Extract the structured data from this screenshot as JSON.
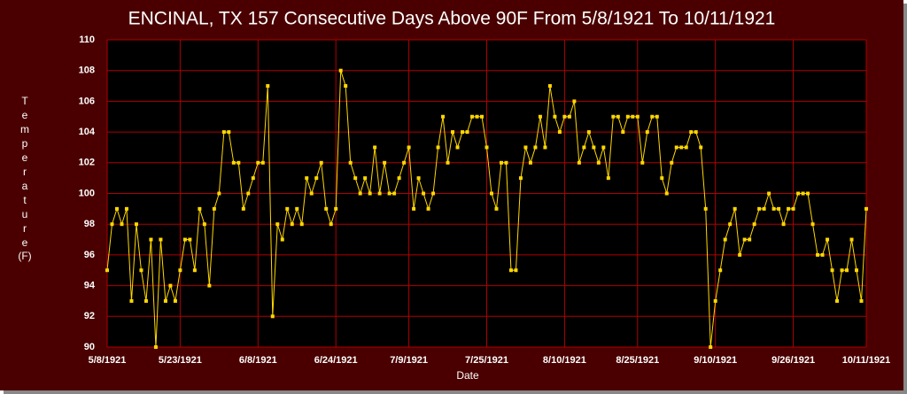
{
  "chart_data": {
    "type": "line",
    "title": "ENCINAL, TX  157 Consecutive Days Above 90F From 5/8/1921 To 10/11/1921",
    "xlabel": "Date",
    "ylabel": "Temperature",
    "yunit": "(F)",
    "categories": [
      "5/8/1921",
      null,
      null,
      null,
      null,
      null,
      null,
      null,
      null,
      null,
      null,
      null,
      null,
      null,
      null,
      "5/23/1921",
      null,
      null,
      null,
      null,
      null,
      null,
      null,
      null,
      null,
      null,
      null,
      null,
      null,
      null,
      null,
      "6/8/1921",
      null,
      null,
      null,
      null,
      null,
      null,
      null,
      null,
      null,
      null,
      null,
      null,
      null,
      null,
      null,
      "6/24/1921",
      null,
      null,
      null,
      null,
      null,
      null,
      null,
      null,
      null,
      null,
      null,
      null,
      null,
      null,
      "7/9/1921",
      null,
      null,
      null,
      null,
      null,
      null,
      null,
      null,
      null,
      null,
      null,
      null,
      null,
      null,
      null,
      "7/25/1921",
      null,
      null,
      null,
      null,
      null,
      null,
      null,
      null,
      null,
      null,
      null,
      null,
      null,
      null,
      null,
      "8/10/1921",
      null,
      null,
      null,
      null,
      null,
      null,
      null,
      null,
      null,
      null,
      null,
      null,
      null,
      null,
      "8/25/1921",
      null,
      null,
      null,
      null,
      null,
      null,
      null,
      null,
      null,
      null,
      null,
      null,
      null,
      null,
      null,
      "9/10/1921",
      null,
      null,
      null,
      null,
      null,
      null,
      null,
      null,
      null,
      null,
      null,
      null,
      null,
      null,
      null,
      "9/26/1921",
      null,
      null,
      null,
      null,
      null,
      null,
      null,
      null,
      null,
      null,
      null,
      null,
      null,
      null,
      "10/11/1921"
    ],
    "values": [
      95,
      98,
      99,
      98,
      99,
      93,
      98,
      95,
      93,
      97,
      90,
      97,
      93,
      94,
      93,
      95,
      97,
      97,
      95,
      99,
      98,
      94,
      99,
      100,
      104,
      104,
      102,
      102,
      99,
      100,
      101,
      102,
      102,
      107,
      92,
      98,
      97,
      99,
      98,
      99,
      98,
      101,
      100,
      101,
      102,
      99,
      98,
      99,
      108,
      107,
      102,
      101,
      100,
      101,
      100,
      103,
      100,
      102,
      100,
      100,
      101,
      102,
      103,
      99,
      101,
      100,
      99,
      100,
      103,
      105,
      102,
      104,
      103,
      104,
      104,
      105,
      105,
      105,
      103,
      100,
      99,
      102,
      102,
      95,
      95,
      101,
      103,
      102,
      103,
      105,
      103,
      107,
      105,
      104,
      105,
      105,
      106,
      102,
      103,
      104,
      103,
      102,
      103,
      101,
      105,
      105,
      104,
      105,
      105,
      105,
      102,
      104,
      105,
      105,
      101,
      100,
      102,
      103,
      103,
      103,
      104,
      104,
      103,
      99,
      90,
      93,
      95,
      97,
      98,
      99,
      96,
      97,
      97,
      98,
      99,
      99,
      100,
      99,
      99,
      98,
      99,
      99,
      100,
      100,
      100,
      98,
      96,
      96,
      97,
      95,
      93,
      95,
      95,
      97,
      95,
      93,
      99
    ],
    "color": "#ffd700",
    "ylim": [
      90,
      110
    ],
    "yticks": [
      90,
      92,
      94,
      96,
      98,
      100,
      102,
      104,
      106,
      108,
      110
    ],
    "grid": true,
    "grid_color": "#b00000"
  }
}
